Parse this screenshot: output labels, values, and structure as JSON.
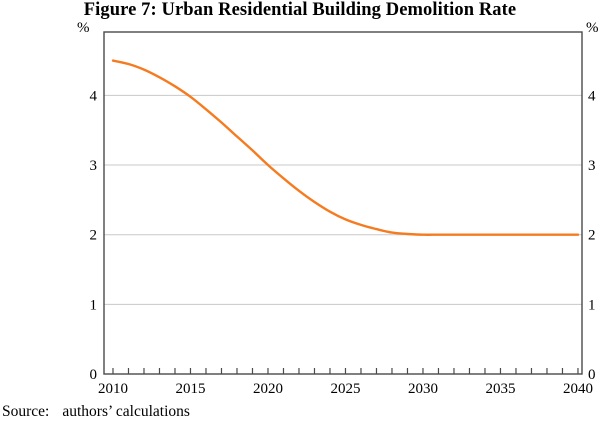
{
  "title": "Figure 7: Urban Residential Building Demolition Rate",
  "source": {
    "label": "Source:",
    "text": "authors’ calculations"
  },
  "chart_data": {
    "type": "line",
    "title": "Figure 7: Urban Residential Building Demolition Rate",
    "unit": "%",
    "xlabel": "",
    "ylabel": "%",
    "xlim": [
      2009.42,
      2040.26
    ],
    "ylim": [
      0,
      4.91
    ],
    "grid": "horizontal",
    "gridlines_at": [
      1,
      2,
      3,
      4
    ],
    "yticks": [
      0,
      1,
      2,
      3,
      4
    ],
    "ytick_labels_sides": "both",
    "xticks_labeled": [
      2010,
      2015,
      2020,
      2025,
      2030,
      2035,
      2040
    ],
    "xticks_minor_every_years": 1,
    "legend": "none",
    "x": [
      2010,
      2011,
      2012,
      2013,
      2014,
      2015,
      2016,
      2017,
      2018,
      2019,
      2020,
      2021,
      2022,
      2023,
      2024,
      2025,
      2026,
      2027,
      2028,
      2029,
      2030,
      2031,
      2032,
      2033,
      2034,
      2035,
      2036,
      2037,
      2038,
      2039,
      2040
    ],
    "series": [
      {
        "name": "Urban residential building demolition rate",
        "color": "#f67b20",
        "values": [
          4.5,
          4.45,
          4.37,
          4.26,
          4.13,
          3.98,
          3.8,
          3.61,
          3.41,
          3.21,
          3.0,
          2.81,
          2.63,
          2.47,
          2.33,
          2.22,
          2.14,
          2.08,
          2.03,
          2.01,
          2.0,
          2.0,
          2.0,
          2.0,
          2.0,
          2.0,
          2.0,
          2.0,
          2.0,
          2.0,
          2.0
        ]
      }
    ],
    "frame_color": "#4a4a4a",
    "gridline_color": "#c8c8c8",
    "source_note": "Source: authors’ calculations"
  }
}
